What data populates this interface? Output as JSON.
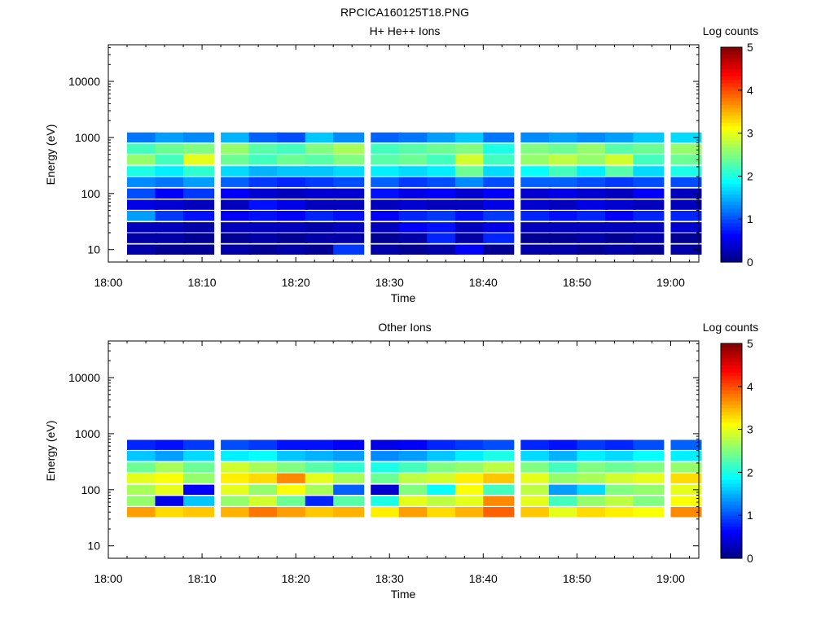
{
  "figure_title": "RPCICA160125T18.PNG",
  "chart_data": [
    {
      "type": "heatmap",
      "title": "H+ He++ Ions",
      "xlabel": "Time",
      "ylabel": "Energy (eV)",
      "colorbar_label": "Log counts",
      "colorbar_ticks": [
        "0",
        "1",
        "2",
        "3",
        "4",
        "5"
      ],
      "x_ticks": [
        "18:00",
        "18:10",
        "18:20",
        "18:30",
        "18:40",
        "18:50",
        "19:00"
      ],
      "y_ticks": [
        "10",
        "100",
        "1000",
        "10000"
      ],
      "y_scale": "log",
      "xlim": [
        "18:00",
        "19:03"
      ],
      "ylim": [
        6,
        45000
      ],
      "grid": false,
      "time_bins": [
        "18:02",
        "18:05",
        "18:08",
        "18:12",
        "18:15",
        "18:18",
        "18:21",
        "18:24",
        "18:28",
        "18:31",
        "18:34",
        "18:37",
        "18:40",
        "18:44",
        "18:47",
        "18:50",
        "18:53",
        "18:56",
        "19:00"
      ],
      "energy_bins_eV": [
        10,
        16,
        25,
        40,
        63,
        100,
        160,
        250,
        400,
        630,
        1000
      ],
      "log_counts_matrix": [
        [
          0.2,
          0.2,
          0.3,
          1.4,
          0.5,
          1.0,
          1.3,
          2.0,
          2.6,
          2.2,
          1.2
        ],
        [
          0.1,
          0.2,
          0.3,
          0.9,
          0.4,
          0.6,
          1.2,
          1.8,
          2.2,
          2.4,
          1.4
        ],
        [
          0.1,
          0.1,
          0.2,
          0.7,
          0.3,
          0.9,
          1.4,
          2.1,
          3.0,
          2.5,
          1.3
        ],
        [
          0.2,
          0.1,
          0.3,
          0.6,
          0.3,
          0.6,
          1.1,
          1.7,
          2.4,
          2.6,
          1.5
        ],
        [
          0.1,
          0.2,
          0.3,
          0.7,
          0.7,
          0.4,
          0.9,
          1.5,
          2.2,
          2.3,
          1.1
        ],
        [
          0.2,
          0.1,
          0.3,
          0.6,
          0.5,
          0.3,
          0.8,
          1.6,
          2.4,
          2.2,
          1.0
        ],
        [
          0.1,
          0.2,
          0.2,
          0.8,
          0.3,
          0.4,
          0.9,
          1.6,
          2.3,
          2.5,
          1.6
        ],
        [
          0.9,
          0.2,
          0.3,
          0.7,
          0.3,
          0.4,
          1.0,
          1.7,
          2.5,
          2.7,
          1.3
        ],
        [
          0.2,
          0.1,
          0.3,
          0.6,
          0.3,
          0.7,
          1.1,
          1.8,
          2.3,
          2.2,
          1.1
        ],
        [
          0.1,
          0.2,
          0.6,
          0.8,
          0.4,
          0.5,
          0.9,
          1.7,
          2.4,
          2.3,
          1.2
        ],
        [
          0.2,
          0.8,
          0.7,
          0.9,
          0.3,
          0.6,
          1.0,
          1.8,
          2.2,
          2.4,
          1.4
        ],
        [
          0.6,
          0.2,
          0.3,
          0.7,
          0.3,
          0.4,
          1.3,
          2.4,
          2.9,
          2.5,
          1.6
        ],
        [
          0.1,
          0.8,
          0.5,
          0.9,
          0.5,
          0.6,
          1.0,
          1.7,
          2.2,
          2.0,
          1.2
        ],
        [
          0.2,
          0.1,
          0.3,
          0.8,
          0.4,
          0.4,
          1.1,
          1.9,
          2.6,
          2.5,
          1.3
        ],
        [
          0.2,
          0.1,
          0.3,
          0.7,
          0.3,
          0.5,
          1.1,
          2.2,
          2.8,
          2.4,
          1.4
        ],
        [
          0.1,
          0.2,
          0.3,
          0.8,
          0.5,
          0.4,
          1.0,
          1.8,
          2.6,
          2.6,
          1.3
        ],
        [
          0.2,
          0.1,
          0.3,
          0.6,
          0.4,
          0.3,
          0.9,
          2.3,
          2.9,
          2.3,
          1.4
        ],
        [
          0.1,
          0.2,
          0.3,
          0.8,
          0.3,
          0.6,
          1.0,
          1.7,
          2.2,
          2.4,
          1.6
        ],
        [
          0.2,
          0.1,
          0.4,
          0.8,
          0.3,
          0.3,
          1.0,
          2.0,
          2.4,
          2.6,
          1.7
        ]
      ],
      "colorbar": {
        "min": 0,
        "max": 5,
        "colormap": "jet"
      }
    },
    {
      "type": "heatmap",
      "title": "Other Ions",
      "xlabel": "Time",
      "ylabel": "Energy (eV)",
      "colorbar_label": "Log counts",
      "colorbar_ticks": [
        "0",
        "1",
        "2",
        "3",
        "4",
        "5"
      ],
      "x_ticks": [
        "18:00",
        "18:10",
        "18:20",
        "18:30",
        "18:40",
        "18:50",
        "19:00"
      ],
      "y_ticks": [
        "10",
        "100",
        "1000",
        "10000"
      ],
      "y_scale": "log",
      "xlim": [
        "18:00",
        "19:03"
      ],
      "ylim": [
        6,
        45000
      ],
      "grid": false,
      "time_bins": [
        "18:02",
        "18:05",
        "18:08",
        "18:12",
        "18:15",
        "18:18",
        "18:21",
        "18:24",
        "18:28",
        "18:31",
        "18:34",
        "18:37",
        "18:40",
        "18:44",
        "18:47",
        "18:50",
        "18:53",
        "18:56",
        "19:00"
      ],
      "energy_bins_eV": [
        40,
        63,
        100,
        160,
        250,
        400,
        630
      ],
      "log_counts_matrix": [
        [
          3.6,
          2.6,
          2.7,
          3.0,
          2.4,
          1.6,
          0.8
        ],
        [
          3.3,
          0.5,
          3.0,
          3.1,
          2.7,
          1.4,
          0.7
        ],
        [
          3.4,
          1.6,
          0.6,
          2.6,
          2.4,
          1.7,
          0.9
        ],
        [
          3.5,
          2.6,
          3.0,
          3.2,
          2.9,
          1.8,
          1.0
        ],
        [
          3.8,
          2.9,
          2.6,
          3.3,
          2.7,
          1.9,
          0.9
        ],
        [
          3.6,
          2.4,
          3.1,
          3.7,
          2.5,
          1.6,
          0.7
        ],
        [
          3.4,
          0.8,
          2.7,
          3.0,
          2.3,
          1.5,
          0.7
        ],
        [
          3.5,
          2.3,
          1.1,
          2.7,
          2.1,
          1.4,
          0.6
        ],
        [
          3.2,
          2.0,
          0.4,
          2.4,
          2.0,
          1.3,
          0.5
        ],
        [
          3.6,
          3.0,
          2.5,
          2.8,
          2.2,
          1.4,
          0.6
        ],
        [
          3.3,
          2.8,
          1.9,
          2.9,
          2.5,
          1.6,
          0.8
        ],
        [
          3.5,
          3.0,
          3.1,
          3.2,
          2.6,
          1.8,
          0.9
        ],
        [
          3.9,
          3.7,
          2.2,
          3.4,
          2.8,
          2.0,
          1.0
        ],
        [
          3.4,
          3.0,
          2.8,
          3.0,
          2.5,
          1.7,
          0.8
        ],
        [
          3.0,
          2.2,
          1.4,
          2.6,
          2.2,
          1.5,
          0.7
        ],
        [
          3.3,
          2.6,
          1.7,
          2.7,
          2.5,
          1.8,
          0.9
        ],
        [
          3.2,
          2.8,
          2.5,
          2.9,
          2.4,
          1.7,
          0.8
        ],
        [
          3.1,
          2.5,
          2.6,
          3.0,
          2.5,
          1.9,
          1.0
        ],
        [
          3.7,
          3.1,
          3.0,
          3.3,
          2.6,
          1.8,
          1.1
        ]
      ],
      "colorbar": {
        "min": 0,
        "max": 5,
        "colormap": "jet"
      }
    }
  ]
}
